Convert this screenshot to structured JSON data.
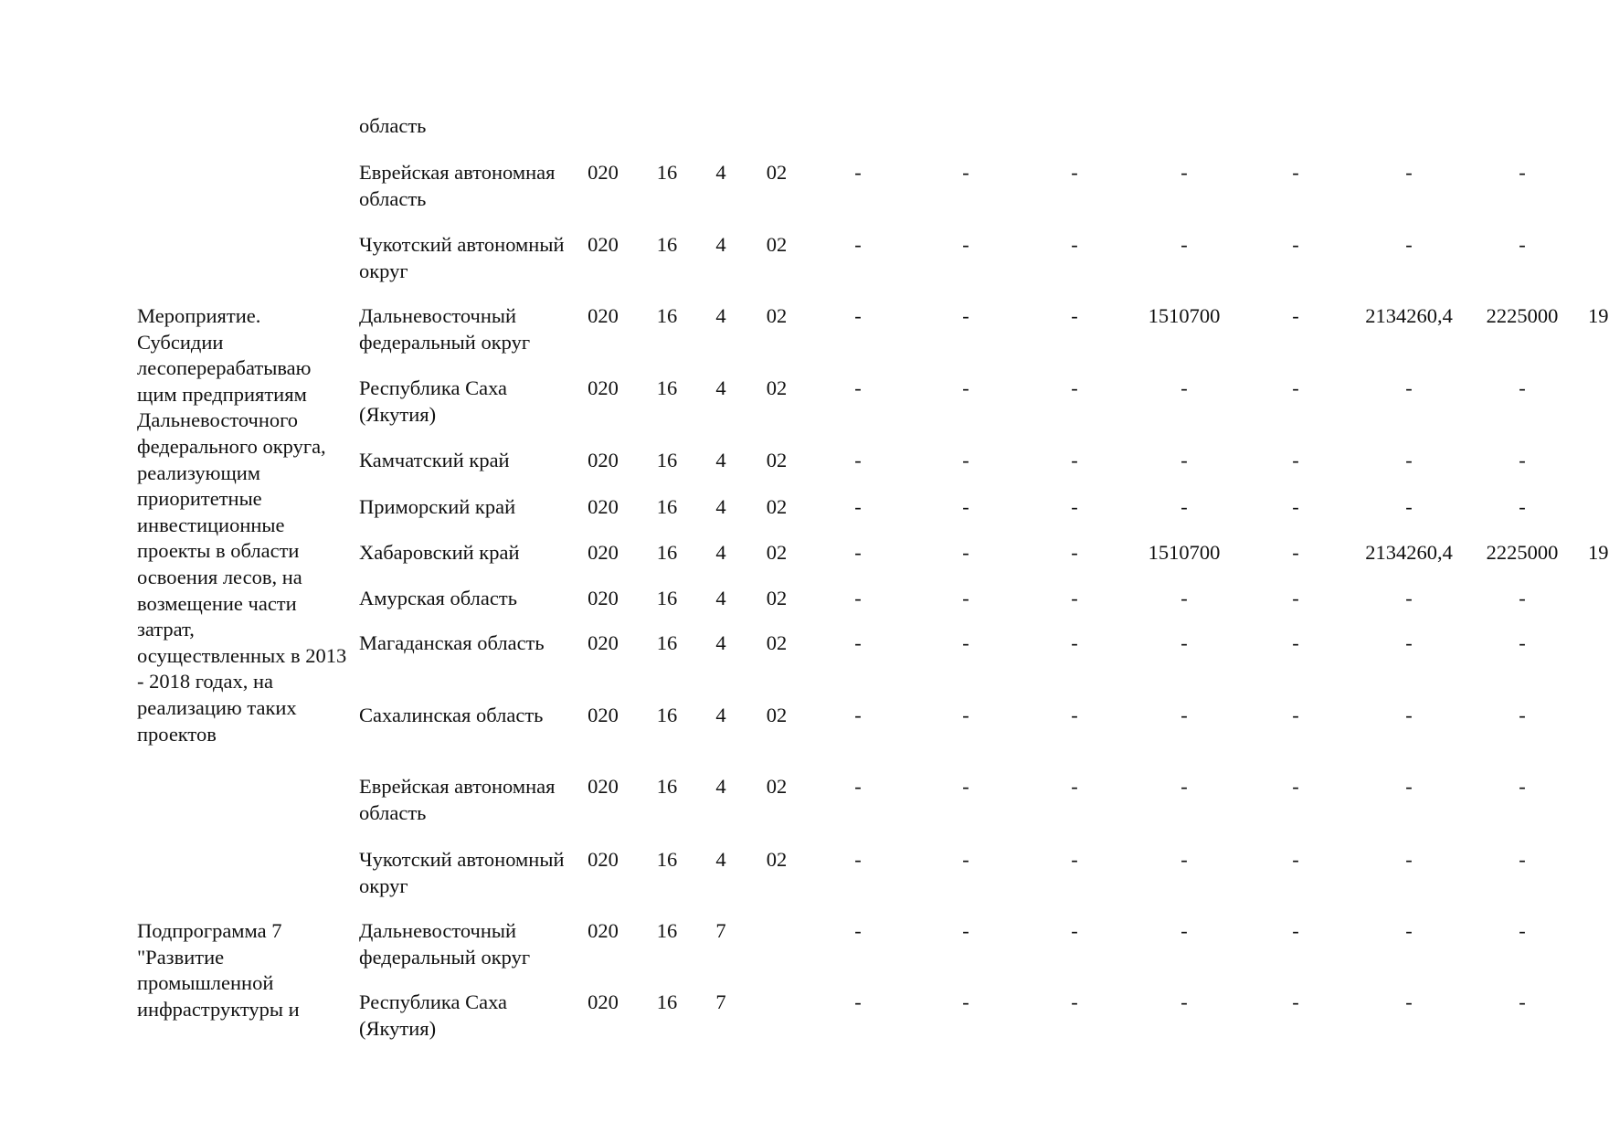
{
  "groups": [
    {
      "description": "",
      "rows": [
        {
          "region": "область",
          "codes": [
            "",
            "",
            "",
            ""
          ],
          "values": [
            "",
            "",
            "",
            "",
            "",
            "",
            "",
            ""
          ]
        },
        {
          "region": "Еврейская автономная область",
          "codes": [
            "020",
            "16",
            "4",
            "02"
          ],
          "values": [
            "-",
            "-",
            "-",
            "-",
            "-",
            "-",
            "-",
            ""
          ]
        },
        {
          "region": "Чукотский автономный округ",
          "codes": [
            "020",
            "16",
            "4",
            "02"
          ],
          "values": [
            "-",
            "-",
            "-",
            "-",
            "-",
            "-",
            "-",
            ""
          ]
        }
      ]
    },
    {
      "description": "Мероприятие. Субсидии лесоперерабатываю щим предприятиям Дальневосточного федерального округа, реализующим приоритетные инвестиционные проекты в области освоения лесов, на возмещение части затрат, осуществленных в 2013 - 2018 годах, на реализацию таких проектов",
      "rows": [
        {
          "region": "Дальневосточный федеральный округ",
          "codes": [
            "020",
            "16",
            "4",
            "02"
          ],
          "values": [
            "-",
            "-",
            "-",
            "1510700",
            "-",
            "2134260,4",
            "2225000",
            "19"
          ]
        },
        {
          "region": "Республика Саха (Якутия)",
          "codes": [
            "020",
            "16",
            "4",
            "02"
          ],
          "values": [
            "-",
            "-",
            "-",
            "-",
            "-",
            "-",
            "-",
            ""
          ]
        },
        {
          "region": "Камчатский край",
          "codes": [
            "020",
            "16",
            "4",
            "02"
          ],
          "values": [
            "-",
            "-",
            "-",
            "-",
            "-",
            "-",
            "-",
            ""
          ]
        },
        {
          "region": "Приморский край",
          "codes": [
            "020",
            "16",
            "4",
            "02"
          ],
          "values": [
            "-",
            "-",
            "-",
            "-",
            "-",
            "-",
            "-",
            ""
          ]
        },
        {
          "region": "Хабаровский край",
          "codes": [
            "020",
            "16",
            "4",
            "02"
          ],
          "values": [
            "-",
            "-",
            "-",
            "1510700",
            "-",
            "2134260,4",
            "2225000",
            "19"
          ]
        },
        {
          "region": "Амурская область",
          "codes": [
            "020",
            "16",
            "4",
            "02"
          ],
          "values": [
            "-",
            "-",
            "-",
            "-",
            "-",
            "-",
            "-",
            ""
          ]
        },
        {
          "region": "Магаданская область",
          "codes": [
            "020",
            "16",
            "4",
            "02"
          ],
          "values": [
            "-",
            "-",
            "-",
            "-",
            "-",
            "-",
            "-",
            ""
          ]
        },
        {
          "region": "Сахалинская область",
          "codes": [
            "020",
            "16",
            "4",
            "02"
          ],
          "values": [
            "-",
            "-",
            "-",
            "-",
            "-",
            "-",
            "-",
            ""
          ]
        },
        {
          "region": "Еврейская автономная область",
          "codes": [
            "020",
            "16",
            "4",
            "02"
          ],
          "values": [
            "-",
            "-",
            "-",
            "-",
            "-",
            "-",
            "-",
            ""
          ]
        },
        {
          "region": "Чукотский автономный округ",
          "codes": [
            "020",
            "16",
            "4",
            "02"
          ],
          "values": [
            "-",
            "-",
            "-",
            "-",
            "-",
            "-",
            "-",
            ""
          ]
        }
      ]
    },
    {
      "description": "Подпрограмма 7 \"Развитие промышленной инфраструктуры и",
      "rows": [
        {
          "region": "Дальневосточный федеральный округ",
          "codes": [
            "020",
            "16",
            "7",
            ""
          ],
          "values": [
            "-",
            "-",
            "-",
            "-",
            "-",
            "-",
            "-",
            ""
          ]
        },
        {
          "region": "Республика Саха (Якутия)",
          "codes": [
            "020",
            "16",
            "7",
            ""
          ],
          "values": [
            "-",
            "-",
            "-",
            "-",
            "-",
            "-",
            "-",
            ""
          ]
        }
      ]
    }
  ]
}
